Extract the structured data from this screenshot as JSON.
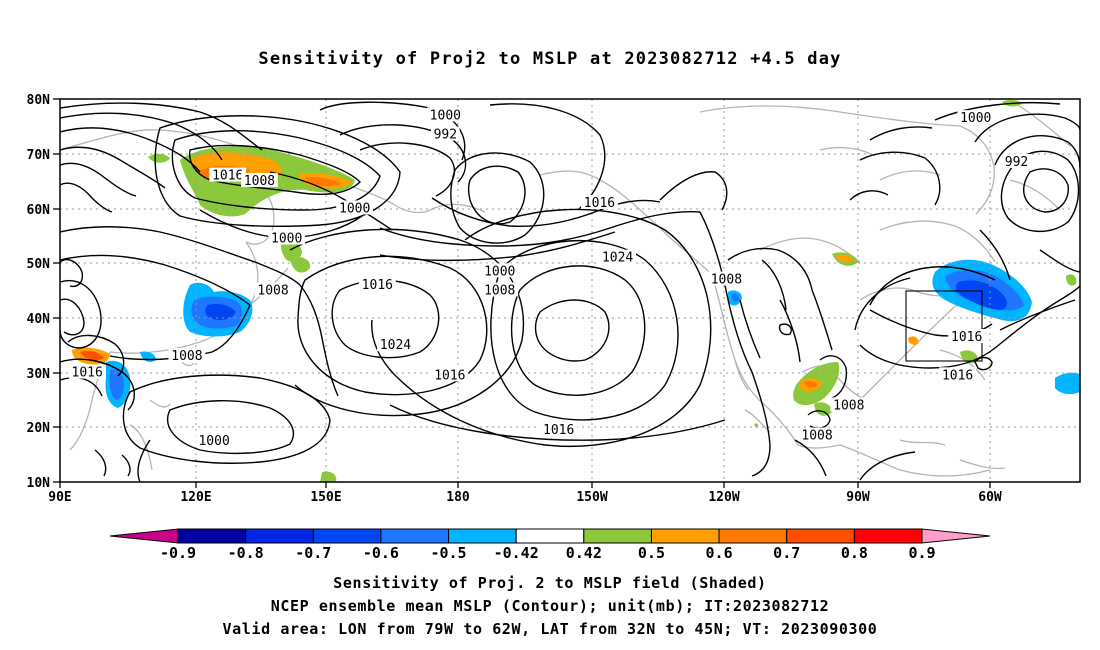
{
  "title": "Sensitivity of Proj2 to MSLP at 2023082712 +4.5 day",
  "axes": {
    "lat_labels": [
      "80N",
      "70N",
      "60N",
      "50N",
      "40N",
      "30N",
      "20N",
      "10N"
    ],
    "lon_labels": [
      "90E",
      "120E",
      "150E",
      "180",
      "150W",
      "120W",
      "90W",
      "60W"
    ]
  },
  "contour_labels": [
    {
      "text": "1000",
      "lon": 175,
      "lat": 77
    },
    {
      "text": "992",
      "lon": 175,
      "lat": 73.5
    },
    {
      "text": "1016",
      "lon": 127,
      "lat": 66
    },
    {
      "text": "1008",
      "lon": 134,
      "lat": 65
    },
    {
      "text": "1000",
      "lon": 155,
      "lat": 60
    },
    {
      "text": "1000",
      "lon": 140,
      "lat": 54.5
    },
    {
      "text": "1000",
      "lon": 187,
      "lat": 48.5
    },
    {
      "text": "1008",
      "lon": 187,
      "lat": 45
    },
    {
      "text": "1016",
      "lon": 209,
      "lat": 61
    },
    {
      "text": "1024",
      "lon": 213,
      "lat": 51
    },
    {
      "text": "1016",
      "lon": 160,
      "lat": 46
    },
    {
      "text": "1008",
      "lon": 137,
      "lat": 45
    },
    {
      "text": "1024",
      "lon": 164,
      "lat": 35
    },
    {
      "text": "1008",
      "lon": 118,
      "lat": 33
    },
    {
      "text": "1016",
      "lon": 96,
      "lat": 30
    },
    {
      "text": "1016",
      "lon": 176,
      "lat": 29.5
    },
    {
      "text": "1000",
      "lon": 124,
      "lat": 17.5
    },
    {
      "text": "1016",
      "lon": 200,
      "lat": 19.5
    },
    {
      "text": "1008",
      "lon": 237,
      "lat": 47
    },
    {
      "text": "1008",
      "lon": 264,
      "lat": 24
    },
    {
      "text": "1008",
      "lon": 257,
      "lat": 18.5
    },
    {
      "text": "1000",
      "lon": 292,
      "lat": 76.5
    },
    {
      "text": "992",
      "lon": 301,
      "lat": 68.5
    },
    {
      "text": "1016",
      "lon": 290,
      "lat": 36.5
    },
    {
      "text": "1016",
      "lon": 288,
      "lat": 29.5
    }
  ],
  "colorbar": {
    "labels": [
      "-0.9",
      "-0.8",
      "-0.7",
      "-0.6",
      "-0.5",
      "-0.42",
      "0.42",
      "0.5",
      "0.6",
      "0.7",
      "0.8",
      "0.9"
    ],
    "colors": [
      "#0000a0",
      "#0028e6",
      "#0046f5",
      "#1e78ff",
      "#00b4ff",
      "#ffffff",
      "#8cc83c",
      "#ffa000",
      "#ff7800",
      "#ff5000",
      "#ff0000"
    ],
    "low_end_color": "#c8008c",
    "high_end_color": "#ff9ec8"
  },
  "captions": {
    "line1": "Sensitivity of Proj. 2 to MSLP field (Shaded)",
    "line2": "NCEP ensemble mean MSLP (Contour); unit(mb); IT:2023082712",
    "line3": "Valid area: LON from 79W to 62W, LAT from 32N to 45N; VT: 2023090300"
  },
  "valid_area": {
    "lon_min": -79,
    "lon_max": -62,
    "lat_min": 32,
    "lat_max": 45
  }
}
